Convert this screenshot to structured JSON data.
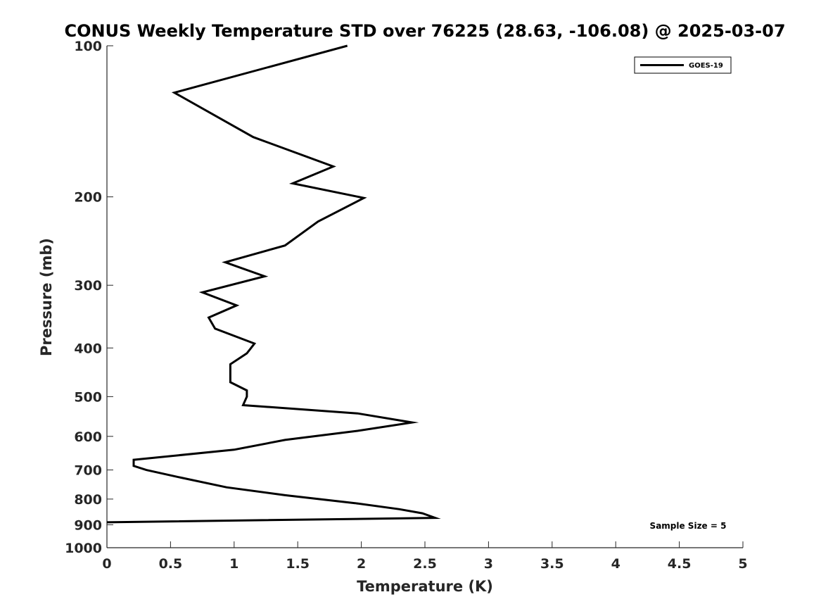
{
  "chart_data": {
    "type": "line",
    "title": "CONUS Weekly Temperature STD over 76225 (28.63, -106.08) @ 2025-03-07",
    "xlabel": "Temperature (K)",
    "ylabel": "Pressure (mb)",
    "xlim": [
      0,
      5
    ],
    "ylim": [
      1000,
      100
    ],
    "yscale": "log",
    "xticks": [
      0,
      0.5,
      1,
      1.5,
      2,
      2.5,
      3,
      3.5,
      4,
      4.5,
      5
    ],
    "xtick_labels": [
      "0",
      "0.5",
      "1",
      "1.5",
      "2",
      "2.5",
      "3",
      "3.5",
      "4",
      "4.5",
      "5"
    ],
    "yticks": [
      100,
      200,
      300,
      400,
      500,
      600,
      700,
      800,
      900,
      1000
    ],
    "ytick_labels": [
      "100",
      "200",
      "300",
      "400",
      "500",
      "600",
      "700",
      "800",
      "900",
      "1000"
    ],
    "grid": false,
    "legend_position": "top-right",
    "annotation": "Sample Size = 5",
    "series": [
      {
        "name": "GOES-19",
        "color": "#000000",
        "x": [
          1.89,
          0.53,
          1.15,
          1.78,
          1.46,
          2.02,
          1.66,
          1.4,
          0.93,
          1.24,
          0.75,
          1.02,
          0.8,
          0.85,
          1.16,
          1.1,
          0.97,
          0.97,
          1.1,
          1.1,
          1.07,
          1.97,
          2.4,
          1.97,
          1.4,
          1.0,
          0.21,
          0.21,
          0.31,
          0.58,
          0.94,
          1.4,
          1.95,
          2.3,
          2.48,
          2.58,
          0.0
        ],
        "y": [
          100,
          124,
          152,
          174,
          188,
          201,
          224,
          250,
          270,
          288,
          310,
          329,
          348,
          366,
          392,
          410,
          431,
          468,
          486,
          500,
          520,
          540,
          563,
          585,
          610,
          638,
          668,
          687,
          700,
          725,
          758,
          786,
          815,
          838,
          854,
          872,
          890
        ]
      }
    ]
  }
}
